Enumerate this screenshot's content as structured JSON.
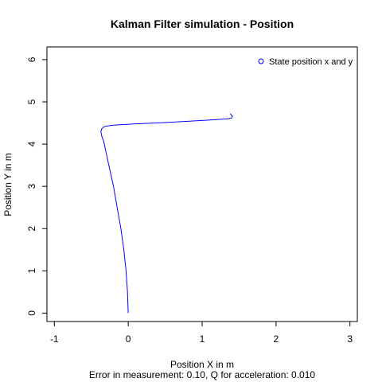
{
  "chart_data": {
    "type": "line",
    "title": "Kalman Filter simulation - Position",
    "xlabel": "Position X in m",
    "ylabel": "Position Y in m",
    "subtitle": "Error in measurement: 0.10, Q for acceleration: 0.010",
    "xlim": [
      -1.1,
      3.1
    ],
    "ylim": [
      -0.2,
      6.3
    ],
    "x_ticks": [
      -1,
      0,
      1,
      2,
      3
    ],
    "y_ticks": [
      0,
      1,
      2,
      3,
      4,
      5,
      6
    ],
    "grid": false,
    "legend_position": "top-right",
    "series": [
      {
        "name": "State position x and y",
        "color": "#0000ff",
        "x": [
          0.0,
          -0.01,
          -0.03,
          -0.06,
          -0.1,
          -0.15,
          -0.2,
          -0.25,
          -0.3,
          -0.33,
          -0.36,
          -0.37,
          -0.36,
          -0.32,
          -0.2,
          0.1,
          0.5,
          0.9,
          1.2,
          1.35,
          1.4,
          1.41,
          1.38
        ],
        "y": [
          0.0,
          0.5,
          1.0,
          1.5,
          2.0,
          2.5,
          3.0,
          3.4,
          3.8,
          4.05,
          4.2,
          4.3,
          4.36,
          4.42,
          4.45,
          4.48,
          4.51,
          4.55,
          4.58,
          4.6,
          4.62,
          4.66,
          4.72
        ]
      }
    ]
  },
  "colors": {
    "series": "#0000ff",
    "axis": "#000000"
  }
}
